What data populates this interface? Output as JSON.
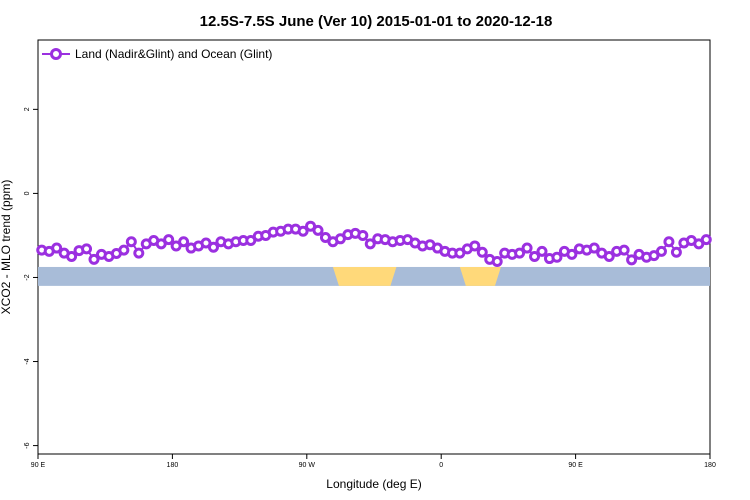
{
  "chart_data": {
    "type": "line",
    "title": "12.5S-7.5S June (Ver 10)   2015-01-01 to 2020-12-18",
    "xlabel": "Longitude (deg E)",
    "ylabel": "XCO2 - MLO trend (ppm)",
    "xlim": [
      90,
      450
    ],
    "ylim": [
      -6.2,
      3.65
    ],
    "x_ticks": [
      {
        "value": 90,
        "label": "90 E"
      },
      {
        "value": 162,
        "label": "180"
      },
      {
        "value": 234,
        "label": "90 W"
      },
      {
        "value": 306,
        "label": "0"
      },
      {
        "value": 378,
        "label": "90 E"
      },
      {
        "value": 450,
        "label": "180"
      }
    ],
    "y_ticks": [
      {
        "value": 2,
        "label": "2"
      },
      {
        "value": 0,
        "label": "0"
      },
      {
        "value": -2,
        "label": "-2"
      },
      {
        "value": -4,
        "label": "-4"
      },
      {
        "value": -6,
        "label": "-6"
      }
    ],
    "grid": false,
    "legend_position": "top-left",
    "land_band": {
      "y_range": [
        -2.2,
        -1.75
      ],
      "ocean_color": "#a8bcd8",
      "land_color": "#ffd97a",
      "land_segments": [
        [
          248,
          282
        ],
        [
          316,
          338
        ]
      ]
    },
    "series": [
      {
        "name": "Land (Nadir&Glint) and Ocean (Glint)",
        "color": "#9b30e0",
        "x": [
          92,
          96,
          100,
          104,
          108,
          112,
          116,
          120,
          124,
          128,
          132,
          136,
          140,
          144,
          148,
          152,
          156,
          160,
          164,
          168,
          172,
          176,
          180,
          184,
          188,
          192,
          196,
          200,
          204,
          208,
          212,
          216,
          220,
          224,
          228,
          232,
          236,
          240,
          244,
          248,
          252,
          256,
          260,
          264,
          268,
          272,
          276,
          280,
          284,
          288,
          292,
          296,
          300,
          304,
          308,
          312,
          316,
          320,
          324,
          328,
          332,
          336,
          340,
          344,
          348,
          352,
          356,
          360,
          364,
          368,
          372,
          376,
          380,
          384,
          388,
          392,
          396,
          400,
          404,
          408,
          412,
          416,
          420,
          424,
          428,
          432,
          436,
          440,
          444,
          448
        ],
        "values": [
          -1.35,
          -1.38,
          -1.3,
          -1.42,
          -1.5,
          -1.36,
          -1.32,
          -1.57,
          -1.45,
          -1.5,
          -1.43,
          -1.35,
          -1.15,
          -1.42,
          -1.2,
          -1.12,
          -1.2,
          -1.1,
          -1.25,
          -1.15,
          -1.3,
          -1.25,
          -1.18,
          -1.28,
          -1.15,
          -1.2,
          -1.15,
          -1.12,
          -1.12,
          -1.02,
          -1.0,
          -0.92,
          -0.9,
          -0.85,
          -0.85,
          -0.9,
          -0.78,
          -0.88,
          -1.05,
          -1.15,
          -1.08,
          -0.98,
          -0.95,
          -1.0,
          -1.2,
          -1.08,
          -1.1,
          -1.15,
          -1.12,
          -1.1,
          -1.18,
          -1.25,
          -1.22,
          -1.3,
          -1.38,
          -1.42,
          -1.42,
          -1.32,
          -1.25,
          -1.4,
          -1.57,
          -1.62,
          -1.42,
          -1.45,
          -1.42,
          -1.3,
          -1.5,
          -1.38,
          -1.55,
          -1.52,
          -1.38,
          -1.45,
          -1.32,
          -1.35,
          -1.3,
          -1.42,
          -1.5,
          -1.38,
          -1.35,
          -1.58,
          -1.45,
          -1.52,
          -1.48,
          -1.38,
          -1.15,
          -1.4,
          -1.18,
          -1.12,
          -1.2,
          -1.1
        ]
      }
    ]
  }
}
